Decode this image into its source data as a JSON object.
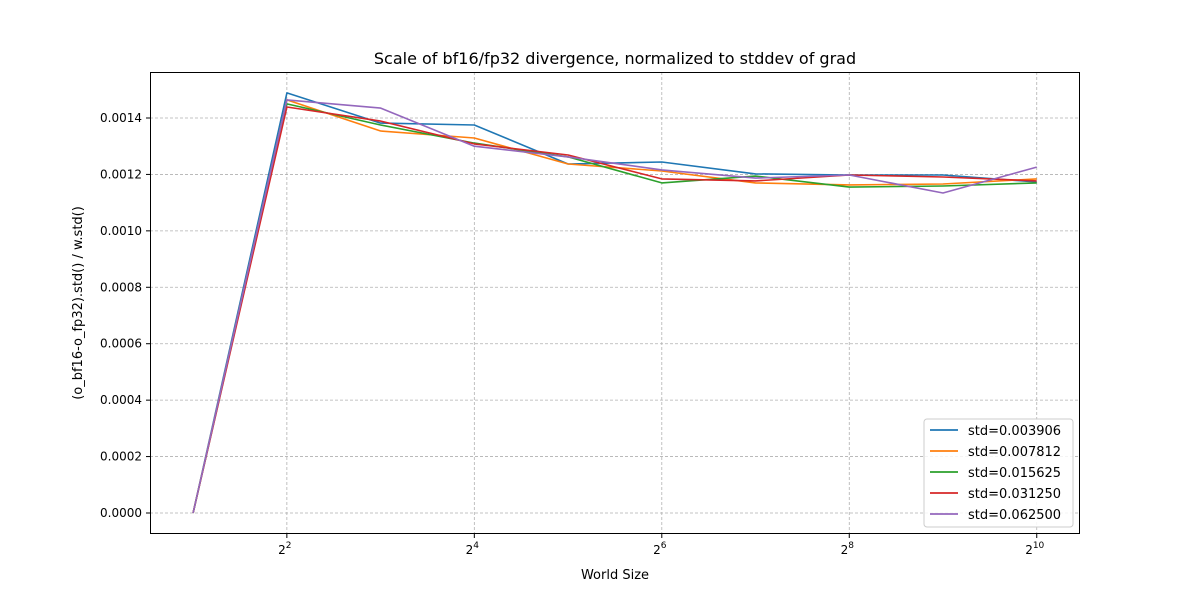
{
  "chart_data": {
    "type": "line",
    "title": "Scale of bf16/fp32 divergence, normalized to stddev of grad",
    "xlabel": "World Size",
    "ylabel": "(o_bf16-o_fp32).std() / w.std()",
    "xscale": "log2",
    "xlim": [
      1.454,
      1410
    ],
    "ylim": [
      -7.44e-05,
      0.001563
    ],
    "grid": true,
    "legend_position": "lower right",
    "x": [
      2,
      4,
      8,
      16,
      32,
      64,
      128,
      256,
      512,
      1024
    ],
    "x_ticks": [
      {
        "base": "2",
        "exp": "2",
        "value": 4
      },
      {
        "base": "2",
        "exp": "4",
        "value": 16
      },
      {
        "base": "2",
        "exp": "6",
        "value": 64
      },
      {
        "base": "2",
        "exp": "8",
        "value": 256
      },
      {
        "base": "2",
        "exp": "10",
        "value": 1024
      }
    ],
    "y_ticks": [
      "0.0000",
      "0.0002",
      "0.0004",
      "0.0006",
      "0.0008",
      "0.0010",
      "0.0012",
      "0.0014"
    ],
    "series": [
      {
        "name": "std=0.003906",
        "color": "#1f77b4",
        "values": [
          0,
          0.001489,
          0.001382,
          0.001375,
          0.001237,
          0.001244,
          0.001202,
          0.001198,
          0.001198,
          0.001173
        ]
      },
      {
        "name": "std=0.007812",
        "color": "#ff7f0e",
        "values": [
          0,
          0.001464,
          0.001354,
          0.001329,
          0.001237,
          0.001212,
          0.00117,
          0.001163,
          0.001166,
          0.001184
        ]
      },
      {
        "name": "std=0.015625",
        "color": "#2ca02c",
        "values": [
          0,
          0.00145,
          0.001375,
          0.001311,
          0.001262,
          0.00117,
          0.001194,
          0.001155,
          0.001159,
          0.00117
        ]
      },
      {
        "name": "std=0.031250",
        "color": "#d62728",
        "values": [
          0,
          0.001439,
          0.001389,
          0.001308,
          0.001269,
          0.001184,
          0.001177,
          0.001198,
          0.001191,
          0.001177
        ]
      },
      {
        "name": "std=0.062500",
        "color": "#9467bd",
        "values": [
          0,
          0.001464,
          0.001435,
          0.0013,
          0.001262,
          0.001216,
          0.001187,
          0.001198,
          0.001134,
          0.001226
        ]
      }
    ]
  }
}
